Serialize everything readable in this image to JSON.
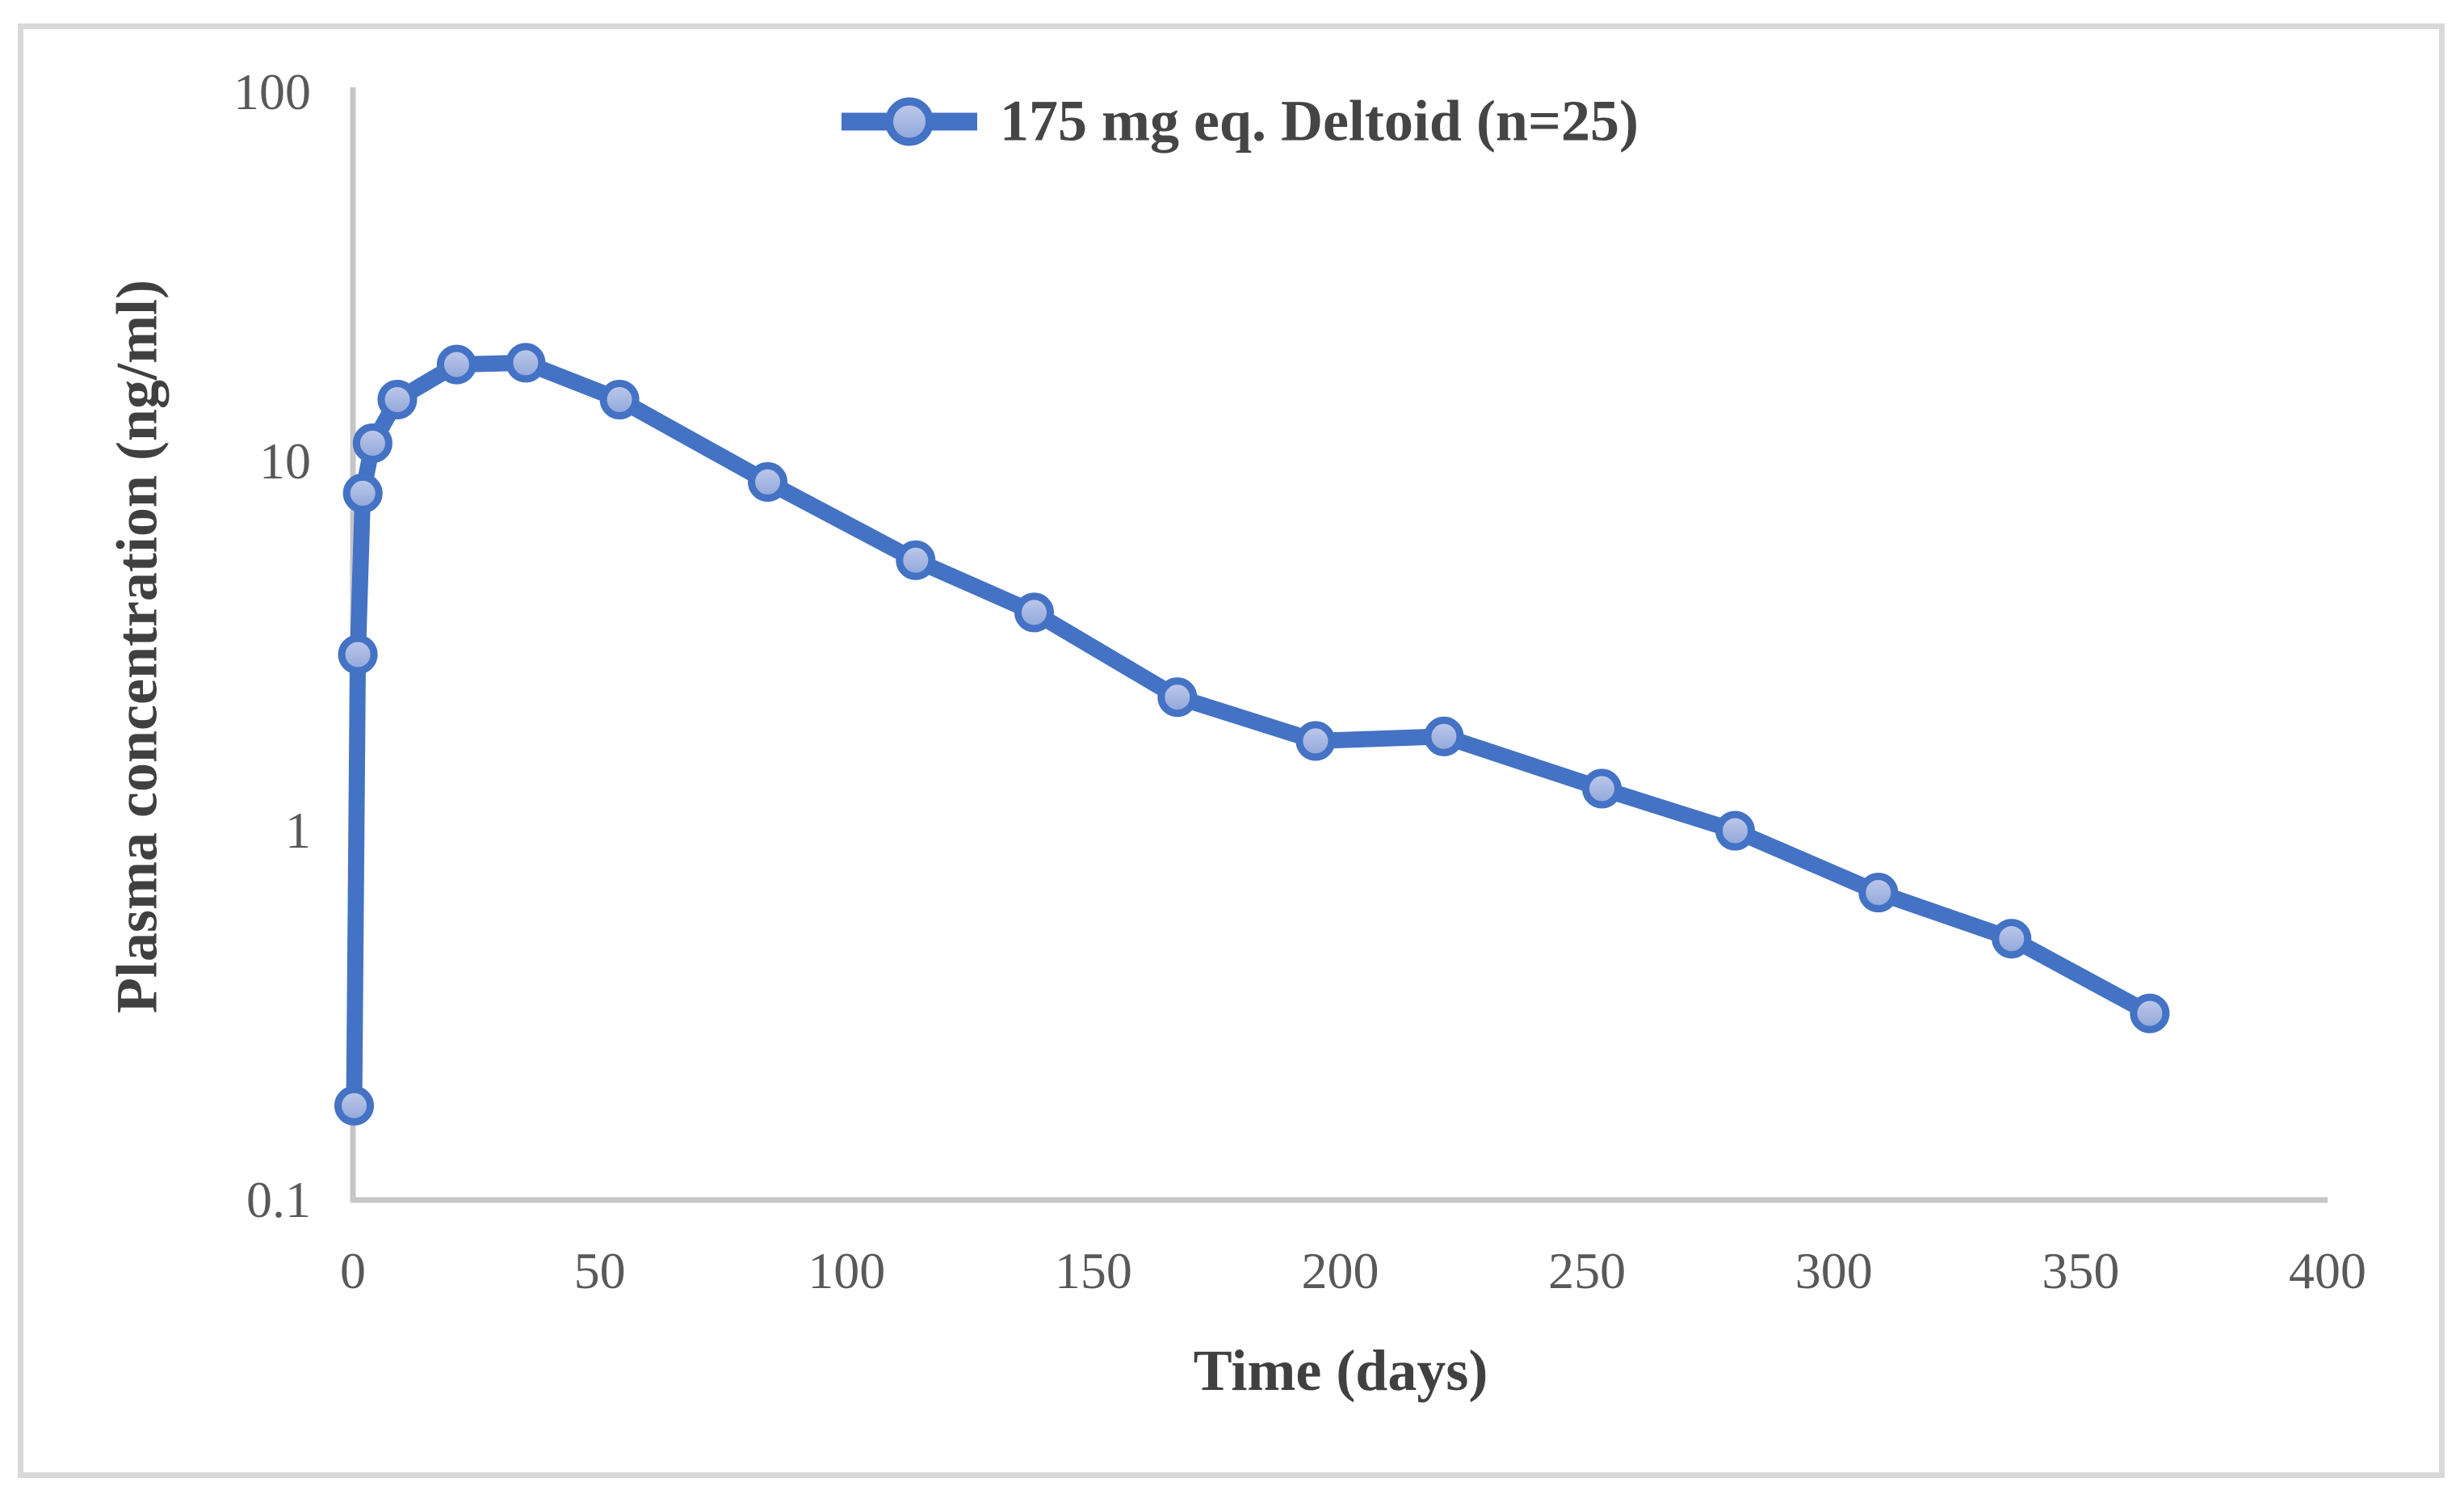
{
  "chart_data": {
    "type": "line",
    "title": "",
    "xlabel": "Time (days)",
    "ylabel": "Plasma concentration (ng/ml)",
    "x_scale": "linear",
    "y_scale": "log",
    "xlim": [
      0,
      400
    ],
    "ylim": [
      0.1,
      100
    ],
    "grid": "off",
    "legend_position": "top-center",
    "x_tick_labels": [
      "0",
      "50",
      "100",
      "150",
      "200",
      "250",
      "300",
      "350",
      "400"
    ],
    "x_tick_values": [
      0,
      50,
      100,
      150,
      200,
      250,
      300,
      350,
      400
    ],
    "y_tick_labels": [
      "100",
      "10",
      "1",
      "0.1"
    ],
    "y_tick_values": [
      100,
      10,
      1,
      0.1
    ],
    "series": [
      {
        "name": "175 mg eq. Deltoid (n=25)",
        "x": [
          0.25,
          1,
          2,
          4,
          9,
          21,
          35,
          54,
          84,
          114,
          138,
          167,
          195,
          221,
          253,
          280,
          309,
          336,
          364
        ],
        "y": [
          0.18,
          3.0,
          8.2,
          11.2,
          14.7,
          18.3,
          18.5,
          14.7,
          8.8,
          5.4,
          3.9,
          2.3,
          1.75,
          1.8,
          1.3,
          1.0,
          0.68,
          0.51,
          0.32
        ],
        "line_color": "#4472C4",
        "marker_fill_top": "#BFCBEC",
        "marker_fill_bottom": "#8FA5D8",
        "marker_ring_color": "#4472C4"
      }
    ],
    "colors": {
      "axis_line": "#C6C6C6",
      "tick_text": "#595959",
      "title_text": "#404040",
      "chart_border": "#D9D9D9",
      "background": "#FFFFFF"
    }
  },
  "legend": {
    "label": "175 mg eq. Deltoid (n=25)"
  },
  "axes": {
    "x_title": "Time (days)",
    "y_title": "Plasma concentration (ng/ml)"
  }
}
